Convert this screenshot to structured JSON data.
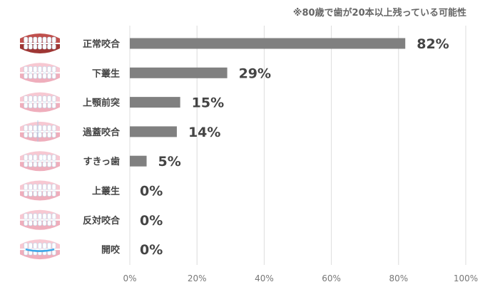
{
  "chart_data": {
    "type": "bar",
    "orientation": "horizontal",
    "annotation": "※80歳で歯が20本以上残っている可能性",
    "categories": [
      "正常咬合",
      "下叢生",
      "上顎前突",
      "過蓋咬合",
      "すきっ歯",
      "上叢生",
      "反対咬合",
      "開咬"
    ],
    "values": [
      82,
      29,
      15,
      14,
      5,
      0,
      0,
      0
    ],
    "value_labels": [
      "82%",
      "29%",
      "15%",
      "14%",
      "5%",
      "0%",
      "0%",
      "0%"
    ],
    "xlim": [
      0,
      100
    ],
    "x_ticks": [
      "0%",
      "20%",
      "40%",
      "60%",
      "80%",
      "100%"
    ],
    "grid": true,
    "bar_color": "#808080",
    "category_icons": [
      "teeth-normal-icon",
      "teeth-lower-crowding-icon",
      "teeth-overjet-icon",
      "teeth-deep-bite-icon",
      "teeth-gap-icon",
      "teeth-upper-crowding-icon",
      "teeth-crossbite-icon",
      "teeth-open-bite-icon"
    ]
  }
}
